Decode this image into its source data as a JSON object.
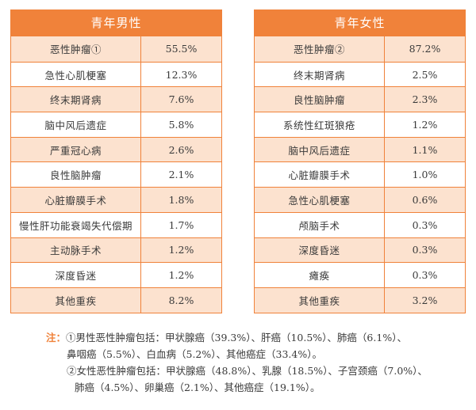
{
  "male": {
    "title": "青年男性",
    "rows": [
      {
        "name": "恶性肿瘤①",
        "value": "55.5%"
      },
      {
        "name": "急性心肌梗塞",
        "value": "12.3%"
      },
      {
        "name": "终末期肾病",
        "value": "7.6%"
      },
      {
        "name": "脑中风后遗症",
        "value": "5.8%"
      },
      {
        "name": "严重冠心病",
        "value": "2.6%"
      },
      {
        "name": "良性脑肿瘤",
        "value": "2.1%"
      },
      {
        "name": "心脏瓣膜手术",
        "value": "1.8%"
      },
      {
        "name": "慢性肝功能衰竭失代偿期",
        "value": "1.7%"
      },
      {
        "name": "主动脉手术",
        "value": "1.2%"
      },
      {
        "name": "深度昏迷",
        "value": "1.2%"
      },
      {
        "name": "其他重疾",
        "value": "8.2%"
      }
    ]
  },
  "female": {
    "title": "青年女性",
    "rows": [
      {
        "name": "恶性肿瘤②",
        "value": "87.2%"
      },
      {
        "name": "终末期肾病",
        "value": "2.5%"
      },
      {
        "name": "良性脑肿瘤",
        "value": "2.3%"
      },
      {
        "name": "系统性红斑狼疮",
        "value": "1.2%"
      },
      {
        "name": "脑中风后遗症",
        "value": "1.1%"
      },
      {
        "name": "心脏瓣膜手术",
        "value": "1.0%"
      },
      {
        "name": "急性心肌梗塞",
        "value": "0.6%"
      },
      {
        "name": "颅脑手术",
        "value": "0.3%"
      },
      {
        "name": "深度昏迷",
        "value": "0.3%"
      },
      {
        "name": "瘫痪",
        "value": "0.3%"
      },
      {
        "name": "其他重疾",
        "value": "3.2%"
      }
    ]
  },
  "notes": {
    "prefix": "注：",
    "line1": "①男性恶性肿瘤包括：甲状腺癌（39.3%）、肝癌（10.5%）、肺癌（6.1%）、",
    "line2": "鼻咽癌（5.5%）、白血病（5.2%）、其他癌症（33.4%）。",
    "line3": "②女性恶性肿瘤包括：甲状腺癌（48.8%）、乳腺（18.5%）、子宫颈癌（7.0%）、",
    "line4": "肺癌（4.5%）、卵巢癌（2.1%）、其他癌症（19.1%）。"
  }
}
